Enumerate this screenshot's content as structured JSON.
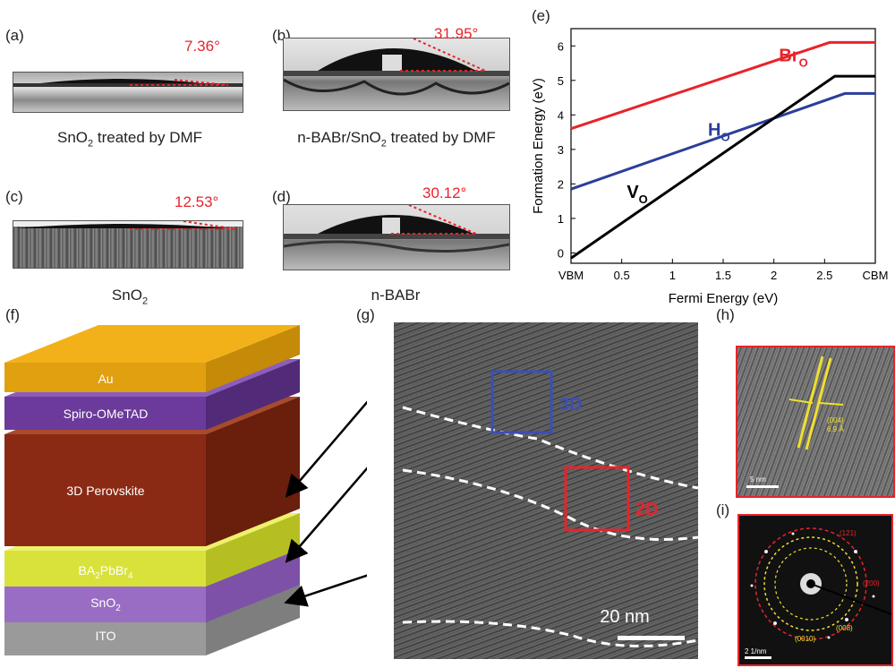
{
  "panels": {
    "a": {
      "label": "(a)",
      "angle": "7.36°",
      "caption_main": "SnO",
      "caption_sub": "2",
      "caption_rest": " treated by DMF"
    },
    "b": {
      "label": "(b)",
      "angle": "31.95°",
      "caption": "n-BABr/SnO",
      "caption_sub": "2",
      "caption_rest": " treated by DMF"
    },
    "c": {
      "label": "(c)",
      "angle": "12.53°",
      "caption": "SnO",
      "caption_sub": "2"
    },
    "d": {
      "label": "(d)",
      "angle": "30.12°",
      "caption": "n-BABr"
    },
    "e": {
      "label": "(e)"
    },
    "f": {
      "label": "(f)"
    },
    "g": {
      "label": "(g)",
      "box_3d": "3D",
      "box_2d": "2D",
      "scale": "20 nm"
    },
    "h": {
      "label": "(h)",
      "spacing_line1": "(004)",
      "spacing_line2": "6.9 Å",
      "scale": "5 nm"
    },
    "i": {
      "label": "(i)",
      "ring1": "(121)",
      "ring2": "(200)",
      "ring3": "(008)",
      "ring4": "(0010)",
      "scale": "2 1/nm"
    }
  },
  "layers": {
    "au": "Au",
    "spiro": "Spiro-OMeTAD",
    "perovskite": "3D Perovskite",
    "ba": "BA",
    "ba_sub": "2",
    "ba_mid": "PbBr",
    "ba_sub2": "4",
    "sno": "SnO",
    "sno_sub": "2",
    "ito": "ITO"
  },
  "colors": {
    "red": "#e8232a",
    "blue": "#2c3e9a",
    "black": "#000000",
    "au": "#f3b119",
    "spiro": "#6b3a9a",
    "perovskite": "#8b2a14",
    "ba": "#d8e23a",
    "sno": "#9a6dc4",
    "ito": "#9a9a9a"
  },
  "chart_data": {
    "type": "line",
    "xlabel": "Fermi Energy (eV)",
    "ylabel": "Formation Energy (eV)",
    "xlim": [
      0,
      3.0
    ],
    "ylim": [
      -0.3,
      6.5
    ],
    "xticks": [
      "VBM",
      "0.5",
      "1",
      "1.5",
      "2",
      "2.5",
      "CBM"
    ],
    "xtick_values": [
      0,
      0.5,
      1,
      1.5,
      2,
      2.5,
      3.0
    ],
    "yticks": [
      "0",
      "1",
      "2",
      "3",
      "4",
      "5",
      "6"
    ],
    "series": [
      {
        "name": "Br",
        "sub": "O",
        "color": "#e8232a",
        "x": [
          0,
          2.55,
          3.0
        ],
        "y": [
          3.6,
          6.1,
          6.1
        ]
      },
      {
        "name": "H",
        "sub": "O",
        "color": "#2c3e9a",
        "x": [
          0,
          2.7,
          3.0
        ],
        "y": [
          1.85,
          4.62,
          4.62
        ]
      },
      {
        "name": "V",
        "sub": "O",
        "color": "#000000",
        "x": [
          0,
          2.6,
          3.0
        ],
        "y": [
          -0.15,
          5.12,
          5.12
        ]
      }
    ]
  }
}
